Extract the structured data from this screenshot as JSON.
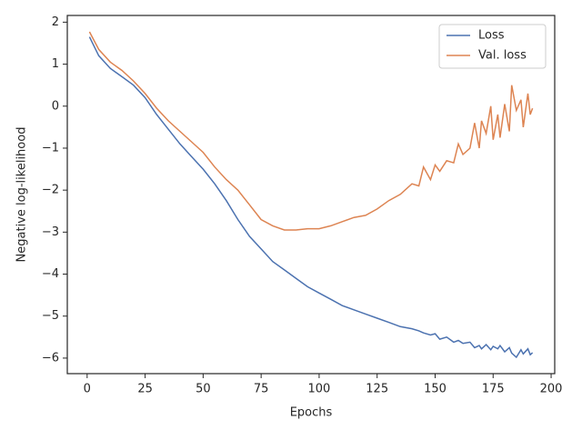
{
  "chart_data": {
    "type": "line",
    "xlabel": "Epochs",
    "ylabel": "Negative log-likelihood",
    "x": [
      1,
      5,
      10,
      15,
      20,
      25,
      30,
      35,
      40,
      45,
      50,
      55,
      60,
      65,
      70,
      75,
      80,
      85,
      90,
      95,
      100,
      105,
      110,
      115,
      120,
      125,
      130,
      135,
      140,
      143,
      145,
      148,
      150,
      152,
      155,
      158,
      160,
      162,
      165,
      167,
      169,
      170,
      172,
      174,
      175,
      177,
      178,
      180,
      182,
      183,
      185,
      187,
      188,
      190,
      191,
      192
    ],
    "series": [
      {
        "name": "Loss",
        "color": "#4c72b0",
        "values": [
          1.65,
          1.2,
          0.9,
          0.7,
          0.5,
          0.2,
          -0.2,
          -0.55,
          -0.9,
          -1.2,
          -1.5,
          -1.85,
          -2.25,
          -2.7,
          -3.1,
          -3.4,
          -3.7,
          -3.9,
          -4.1,
          -4.3,
          -4.45,
          -4.6,
          -4.75,
          -4.85,
          -4.95,
          -5.05,
          -5.15,
          -5.25,
          -5.3,
          -5.35,
          -5.4,
          -5.45,
          -5.42,
          -5.55,
          -5.5,
          -5.62,
          -5.58,
          -5.65,
          -5.62,
          -5.75,
          -5.7,
          -5.78,
          -5.68,
          -5.8,
          -5.72,
          -5.78,
          -5.7,
          -5.85,
          -5.75,
          -5.88,
          -5.98,
          -5.8,
          -5.9,
          -5.78,
          -5.92,
          -5.87
        ]
      },
      {
        "name": "Val. loss",
        "color": "#dd8452",
        "values": [
          1.77,
          1.35,
          1.05,
          0.85,
          0.6,
          0.3,
          -0.05,
          -0.35,
          -0.6,
          -0.85,
          -1.1,
          -1.45,
          -1.75,
          -2.0,
          -2.35,
          -2.7,
          -2.85,
          -2.95,
          -2.95,
          -2.92,
          -2.92,
          -2.85,
          -2.75,
          -2.65,
          -2.6,
          -2.45,
          -2.25,
          -2.1,
          -1.85,
          -1.9,
          -1.45,
          -1.75,
          -1.4,
          -1.55,
          -1.3,
          -1.35,
          -0.9,
          -1.15,
          -1.0,
          -0.4,
          -1.0,
          -0.35,
          -0.65,
          0.0,
          -0.8,
          -0.2,
          -0.75,
          0.05,
          -0.6,
          0.5,
          -0.1,
          0.15,
          -0.5,
          0.3,
          -0.2,
          -0.05
        ]
      }
    ],
    "xlim": [
      -8.55,
      201.55
    ],
    "ylim": [
      -6.37,
      2.16
    ],
    "xticks": [
      0,
      25,
      50,
      75,
      100,
      125,
      150,
      175,
      200
    ],
    "yticks": [
      {
        "value": -6,
        "label": "−6"
      },
      {
        "value": -5,
        "label": "−5"
      },
      {
        "value": -4,
        "label": "−4"
      },
      {
        "value": -3,
        "label": "−3"
      },
      {
        "value": -2,
        "label": "−2"
      },
      {
        "value": -1,
        "label": "−1"
      },
      0,
      1,
      2
    ],
    "legend": "upper right",
    "grid": false
  }
}
